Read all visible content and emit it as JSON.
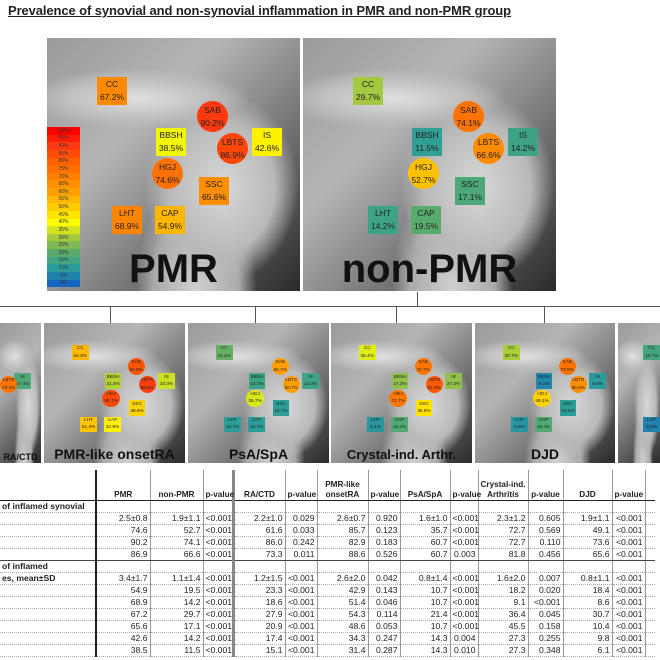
{
  "title": "Prevalence of synovial and non-synovial inflammation in PMR and non-PMR group",
  "color_scale": {
    "stops": [
      [
        0,
        "#1565c0"
      ],
      [
        10,
        "#2a9d9a"
      ],
      [
        20,
        "#5aab6b"
      ],
      [
        30,
        "#a6c93e"
      ],
      [
        40,
        "#ffff00"
      ],
      [
        50,
        "#ffcc00"
      ],
      [
        60,
        "#ffa000"
      ],
      [
        70,
        "#ff8000"
      ],
      [
        80,
        "#ff6000"
      ],
      [
        90,
        "#ff3a10"
      ],
      [
        100,
        "#ff0000"
      ]
    ],
    "labels": [
      "100%",
      "95%",
      "90%",
      "85%",
      "80%",
      "75%",
      "70%",
      "65%",
      "60%",
      "55%",
      "50%",
      "45%",
      "40%",
      "35%",
      "30%",
      "25%",
      "20%",
      "15%",
      "10%",
      "5%",
      "0%"
    ]
  },
  "chart_data": {
    "type": "heatmap",
    "title": "Prevalence of synovial and non-synovial inflammation in PMR and non-PMR group",
    "regions": [
      "CC",
      "SAB",
      "BBSH",
      "IS",
      "LBTS",
      "HGJ",
      "SSC",
      "LHT",
      "CAP"
    ],
    "panels": [
      {
        "name": "PMR",
        "size": "main",
        "values": {
          "CC": 67.2,
          "SAB": 90.2,
          "BBSH": 38.5,
          "IS": 42.6,
          "LBTS": 86.9,
          "HGJ": 74.6,
          "SSC": 65.6,
          "LHT": 68.9,
          "CAP": 54.9
        },
        "scale_bar": true
      },
      {
        "name": "non-PMR",
        "size": "main",
        "values": {
          "CC": 29.7,
          "SAB": 74.1,
          "BBSH": 11.5,
          "IS": 14.2,
          "LBTS": 66.6,
          "HGJ": 52.7,
          "SSC": 17.1,
          "LHT": 14.2,
          "CAP": 19.5
        }
      },
      {
        "name": "RA/CTD",
        "size": "small",
        "values": {
          "CC": 27.9,
          "SAB": 86.0,
          "BBSH": 15.1,
          "IS": 17.4,
          "LBTS": 73.3,
          "HGJ": 61.6,
          "SSC": 20.9,
          "LHT": 18.6,
          "CAP": 23.3
        }
      },
      {
        "name": "PMR-like onsetRA",
        "size": "small",
        "values": {
          "CC": 54.3,
          "SAB": 82.9,
          "BBSH": 31.4,
          "IS": 34.3,
          "LBTS": 88.6,
          "HGJ": 85.7,
          "SSC": 48.6,
          "LHT": 51.4,
          "CAP": 42.9
        }
      },
      {
        "name": "PsA/SpA",
        "size": "small",
        "values": {
          "CC": 21.4,
          "SAB": 60.7,
          "BBSH": 14.3,
          "IS": 14.3,
          "LBTS": 60.7,
          "HGJ": 35.7,
          "SSC": 10.7,
          "LHT": 10.7,
          "CAP": 10.7
        }
      },
      {
        "name": "Crystal-ind. Arthr.",
        "size": "small",
        "values": {
          "CC": 36.4,
          "SAB": 72.7,
          "BBSH": 27.3,
          "IS": 27.3,
          "LBTS": 81.8,
          "HGJ": 72.7,
          "SSC": 45.5,
          "LHT": 9.1,
          "CAP": 18.2
        }
      },
      {
        "name": "DJD",
        "size": "small",
        "values": {
          "CC": 30.7,
          "SAB": 73.6,
          "BBSH": 6.1,
          "IS": 9.8,
          "LBTS": 65.6,
          "HGJ": 49.1,
          "SSC": 10.4,
          "LHT": 8.6,
          "CAP": 18.4
        }
      },
      {
        "name": "",
        "size": "small",
        "values": {
          "CC": 15.7,
          "LHT": 5.0
        }
      }
    ]
  },
  "table": {
    "headers": [
      "",
      "PMR",
      "non-PMR",
      "p-value",
      "RA/CTD",
      "p-value",
      "PMR-like onsetRA",
      "p-value",
      "PsA/SpA",
      "p-value",
      "Crystal-ind. Arthritis",
      "p-value",
      "DJD",
      "p-value"
    ],
    "rows": [
      {
        "label": "of inflamed synovial",
        "cells": [
          "",
          "",
          "",
          "",
          "",
          "",
          "",
          "",
          "",
          "",
          "",
          "",
          ""
        ]
      },
      {
        "label": "",
        "cells": [
          "2.5±0.8",
          "1.9±1.1",
          "<0.001",
          "2.2±1.0",
          "0.029",
          "2.6±0.7",
          "0.920",
          "1.6±1.0",
          "<0.001",
          "2.3±1.2",
          "0.605",
          "1.9±1.1",
          "<0.001"
        ]
      },
      {
        "label": "",
        "cells": [
          "74.6",
          "52.7",
          "<0.001",
          "61.6",
          "0.033",
          "85.7",
          "0.123",
          "35.7",
          "<0.001",
          "72.7",
          "0.569",
          "49.1",
          "<0.001"
        ]
      },
      {
        "label": "",
        "cells": [
          "90.2",
          "74.1",
          "<0.001",
          "86.0",
          "0.242",
          "82.9",
          "0.183",
          "60.7",
          "<0.001",
          "72.7",
          "0.110",
          "73.6",
          "<0.001"
        ]
      },
      {
        "label": "",
        "sep": true,
        "cells": [
          "86.9",
          "66.6",
          "<0.001",
          "73.3",
          "0.011",
          "88.6",
          "0.526",
          "60.7",
          "0.003",
          "81.8",
          "0.456",
          "65.6",
          "<0.001"
        ]
      },
      {
        "label": "of inflamed",
        "cells": [
          "",
          "",
          "",
          "",
          "",
          "",
          "",
          "",
          "",
          "",
          "",
          "",
          ""
        ]
      },
      {
        "label": "es, mean±SD",
        "cells": [
          "3.4±1.7",
          "1.1±1.4",
          "<0.001",
          "1.2±1.5",
          "<0.001",
          "2.6±2.0",
          "0.042",
          "0.8±1.4",
          "<0.001",
          "1.6±2.0",
          "0.007",
          "0.8±1.1",
          "<0.001"
        ]
      },
      {
        "label": "",
        "cells": [
          "54.9",
          "19.5",
          "<0.001",
          "23.3",
          "<0.001",
          "42.9",
          "0.143",
          "10.7",
          "<0.001",
          "18.2",
          "0.020",
          "18.4",
          "<0.001"
        ]
      },
      {
        "label": "",
        "cells": [
          "68.9",
          "14.2",
          "<0.001",
          "18.6",
          "<0.001",
          "51.4",
          "0.046",
          "10.7",
          "<0.001",
          "9.1",
          "<0.001",
          "8.6",
          "<0.001"
        ]
      },
      {
        "label": "",
        "cells": [
          "67.2",
          "29.7",
          "<0.001",
          "27.9",
          "<0.001",
          "54.3",
          "0.114",
          "21.4",
          "<0.001",
          "36.4",
          "0.045",
          "30.7",
          "<0.001"
        ]
      },
      {
        "label": "",
        "cells": [
          "65.6",
          "17.1",
          "<0.001",
          "20.9",
          "<0.001",
          "48.6",
          "0.053",
          "10.7",
          "<0.001",
          "45.5",
          "0.158",
          "10.4",
          "<0.001"
        ]
      },
      {
        "label": "",
        "cells": [
          "42.6",
          "14.2",
          "<0.001",
          "17.4",
          "<0.001",
          "34.3",
          "0.247",
          "14.3",
          "0.004",
          "27.3",
          "0.255",
          "9.8",
          "<0.001"
        ]
      },
      {
        "label": "",
        "cells": [
          "38.5",
          "11.5",
          "<0.001",
          "15.1",
          "<0.001",
          "31.4",
          "0.287",
          "14.3",
          "0.010",
          "27.3",
          "0.348",
          "6.1",
          "<0.001"
        ]
      }
    ]
  }
}
